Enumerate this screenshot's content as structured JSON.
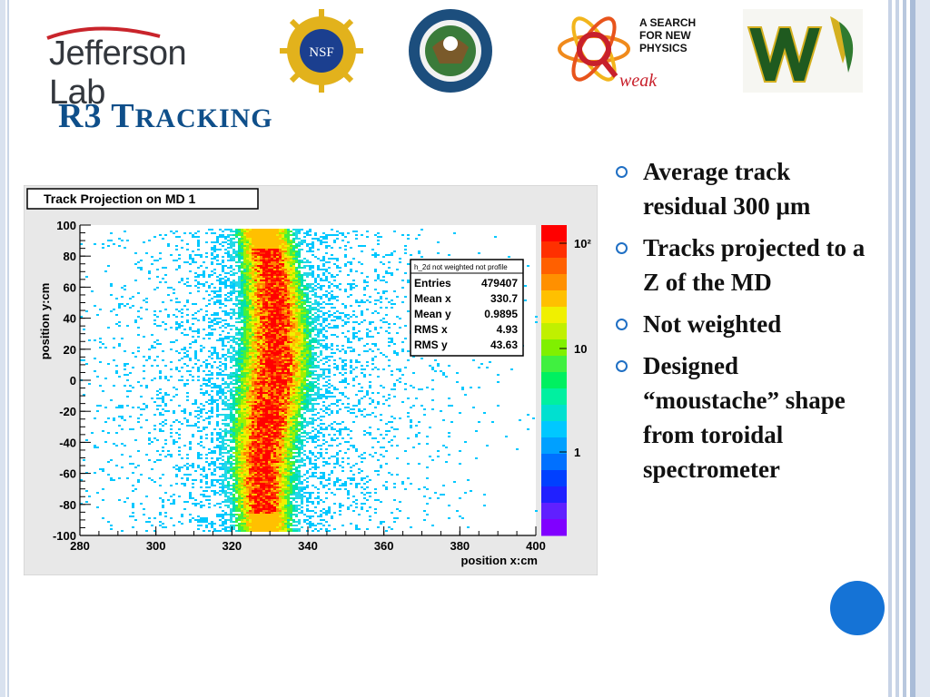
{
  "logos": {
    "jefferson_lab": "Jefferson Lab",
    "nsf": "NSF",
    "qweak_tagline": "A SEARCH FOR NEW PHYSICS",
    "qweak_name": "weak"
  },
  "slide": {
    "title_main": "R3 ",
    "title_caps": "Tracking",
    "bullets": [
      "Average track residual 300 μm",
      "Tracks projected to a Z of the MD",
      "Not weighted",
      "Designed “moustache” shape from toroidal spectrometer"
    ]
  },
  "chart_data": {
    "type": "heatmap",
    "title": "Track Projection on MD 1",
    "xlabel": "position x:cm",
    "ylabel": "position y:cm",
    "xlim": [
      280,
      400
    ],
    "ylim": [
      -100,
      100
    ],
    "x_ticks": [
      "280",
      "300",
      "320",
      "340",
      "360",
      "380",
      "400"
    ],
    "y_ticks": [
      "100",
      "80",
      "60",
      "40",
      "20",
      "0",
      "-20",
      "-40",
      "-60",
      "-80",
      "-100"
    ],
    "color_scale": "log",
    "colorbar_ticks": [
      "10²",
      "10",
      "1"
    ],
    "stats_box": {
      "title": "h_2d not weighted not profile",
      "rows": [
        {
          "label": "Entries",
          "value": "479407"
        },
        {
          "label": "Mean x",
          "value": "330.7"
        },
        {
          "label": "Mean y",
          "value": "0.9895"
        },
        {
          "label": "RMS x",
          "value": "4.93"
        },
        {
          "label": "RMS y",
          "value": "43.63"
        }
      ]
    },
    "distribution": {
      "center_x": 330.7,
      "rms_x": 4.93,
      "y_range": [
        -95,
        100
      ]
    }
  }
}
